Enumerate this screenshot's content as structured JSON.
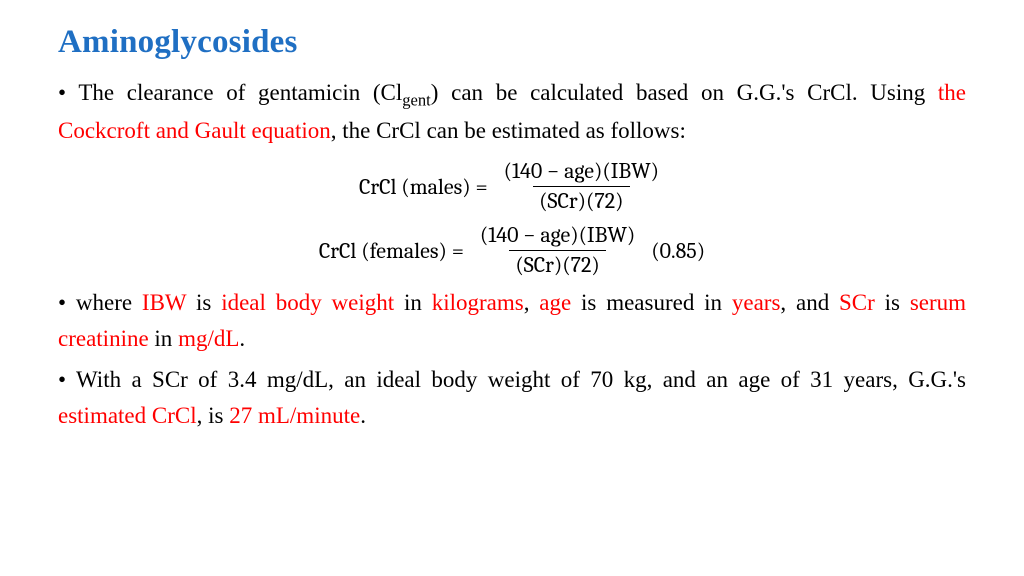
{
  "title": "Aminoglycosides",
  "colors": {
    "title": "#1f6fc3",
    "emphasis": "#ff0000",
    "text": "#000000",
    "background": "#ffffff"
  },
  "fonts": {
    "body_family": "Times New Roman",
    "eq_family": "Cambria",
    "title_size_pt": 25,
    "body_size_pt": 17,
    "eq_size_pt": 17
  },
  "p1": {
    "a": "The clearance of gentamicin (Cl",
    "sub": "gent",
    "b": ") can be calculated based on G.G.'s CrCl. Using ",
    "c": "the Cockcroft and Gault equation",
    "d": ", the CrCl can be estimated as follows:"
  },
  "eq": {
    "male": {
      "label": "CrCl (males) =",
      "num": "(140 − age)(IBW)",
      "den": "(SCr)(72)"
    },
    "female": {
      "label": "CrCl (females) =",
      "num": "(140 − age)(IBW)",
      "den": "(SCr)(72)",
      "trail": "(0.85)"
    }
  },
  "p2": {
    "a": "where ",
    "b": "IBW",
    "c": " is ",
    "d": "ideal body weight",
    "e": " in ",
    "f": "kilograms",
    "g": ", ",
    "h": "age",
    "i": " is measured in ",
    "j": "years",
    "k": ", and ",
    "l": "SCr",
    "m": " is ",
    "n": "serum creatinine",
    "o": " in ",
    "p": "mg/dL",
    "q": "."
  },
  "p3": {
    "a": "With a SCr of 3.4 mg/dL, an ideal body weight of 70 kg, and an age of 31 years, G.G.'s ",
    "b": "estimated CrCl",
    "c": ", is ",
    "d": "27 mL/minute",
    "e": "."
  },
  "values": {
    "SCr_mg_per_dL": 3.4,
    "IBW_kg": 70,
    "age_years": 31,
    "estimated_CrCl_mL_per_min": 27,
    "female_factor": 0.85,
    "numerator_constant": 140,
    "denominator_constant": 72
  }
}
